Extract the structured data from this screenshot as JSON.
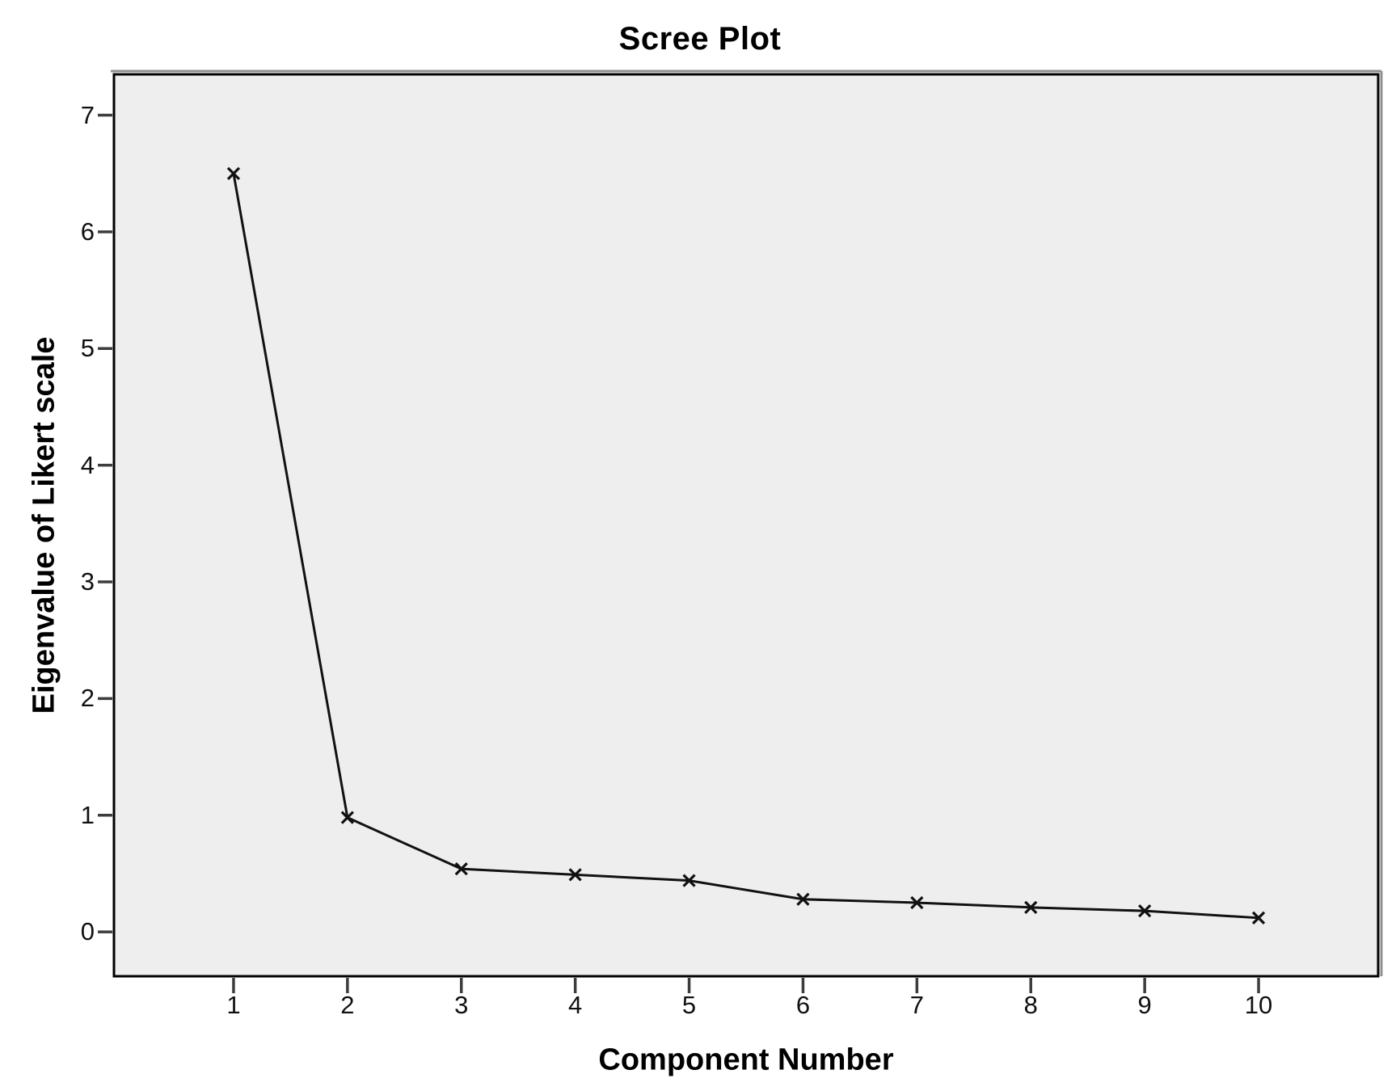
{
  "page": {
    "background": "#ffffff"
  },
  "chart_data": {
    "type": "line",
    "title": "Scree Plot",
    "xlabel": "Component Number",
    "ylabel": "Eigenvalue of Likert scale",
    "series": [
      {
        "name": "Eigenvalue",
        "values": [
          6.5,
          0.98,
          0.54,
          0.49,
          0.44,
          0.28,
          0.25,
          0.21,
          0.18,
          0.12
        ]
      }
    ],
    "categories": [
      1,
      2,
      3,
      4,
      5,
      6,
      7,
      8,
      9,
      10
    ],
    "xticks": [
      1,
      2,
      3,
      4,
      5,
      6,
      7,
      8,
      9,
      10
    ],
    "yticks": [
      0,
      1,
      2,
      3,
      4,
      5,
      6,
      7
    ],
    "xlim": [
      -0.05,
      11.05
    ],
    "ylim": [
      -0.38,
      7.35
    ],
    "grid": false,
    "legend": "none",
    "marker": "x",
    "line_color": "#111111",
    "axis_color": "#000000",
    "tick_color": "#3c3c3c",
    "plot_bg": "#eeeeee",
    "frame_shadow_color": "#8f8f8f"
  }
}
